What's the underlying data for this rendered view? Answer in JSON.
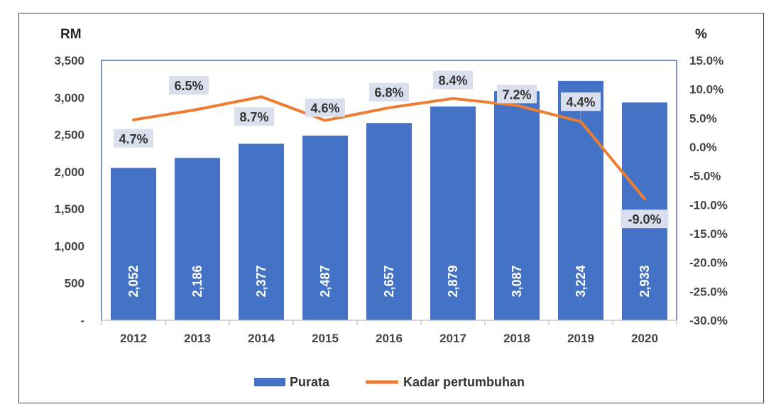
{
  "chart_data": {
    "type": "bar",
    "categories": [
      "2012",
      "2013",
      "2014",
      "2015",
      "2016",
      "2017",
      "2018",
      "2019",
      "2020"
    ],
    "series": [
      {
        "name": "Purata",
        "type": "bar",
        "axis": "left",
        "values": [
          2052,
          2186,
          2377,
          2487,
          2657,
          2879,
          3087,
          3224,
          2933
        ],
        "labels": [
          "2,052",
          "2,186",
          "2,377",
          "2,487",
          "2,657",
          "2,879",
          "3,087",
          "3,224",
          "2,933"
        ],
        "color": "#4472C4"
      },
      {
        "name": "Kadar pertumbuhan",
        "type": "line",
        "axis": "right",
        "values": [
          4.7,
          6.5,
          8.7,
          4.6,
          6.8,
          8.4,
          7.2,
          4.4,
          -9.0
        ],
        "labels": [
          "4.7%",
          "6.5%",
          "8.7%",
          "4.6%",
          "6.8%",
          "8.4%",
          "7.2%",
          "4.4%",
          "-9.0%"
        ],
        "color": "#ED7D31"
      }
    ],
    "y_left": {
      "unit": "RM",
      "range": [
        0,
        3500
      ],
      "ticks": [
        0,
        500,
        1000,
        1500,
        2000,
        2500,
        3000,
        3500
      ],
      "tick_labels": [
        "-",
        "500",
        "1,000",
        "1,500",
        "2,000",
        "2,500",
        "3,000",
        "3,500"
      ]
    },
    "y_right": {
      "unit": "%",
      "range": [
        -30,
        15
      ],
      "ticks": [
        15,
        10,
        5,
        0,
        -5,
        -10,
        -15,
        -20,
        -25,
        -30
      ],
      "tick_labels": [
        "15.0%",
        "10.0%",
        "5.0%",
        "0.0%",
        "-5.0%",
        "-10.0%",
        "-15.0%",
        "-20.0%",
        "-25.0%",
        "-30.0%"
      ]
    },
    "grid": false,
    "legend": {
      "position": "bottom",
      "entries": [
        "Purata",
        "Kadar pertumbuhan"
      ]
    }
  }
}
